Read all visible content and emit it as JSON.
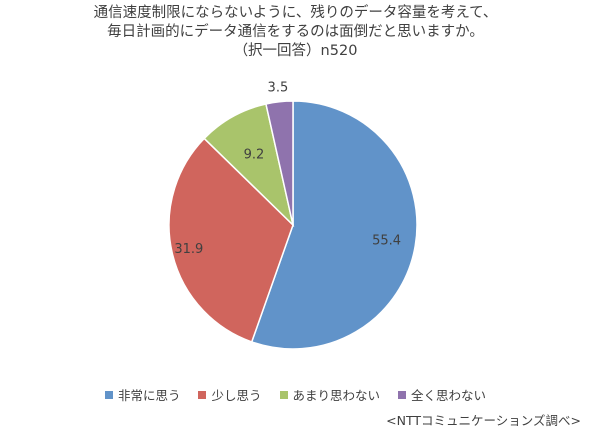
{
  "chart_data": {
    "type": "pie",
    "title_lines": [
      "通信速度制限にならないように、残りのデータ容量を考えて、",
      "毎日計画的にデータ通信をするのは面倒だと思いますか。",
      "（択一回答）n520"
    ],
    "categories": [
      "非常に思う",
      "少し思う",
      "あまり思わない",
      "全く思わない"
    ],
    "values": [
      55.4,
      31.9,
      9.2,
      3.5
    ],
    "labels": [
      "55.4",
      "31.9",
      "9.2",
      "3.5"
    ],
    "colors": [
      "#6193c9",
      "#d0655d",
      "#a9c46b",
      "#8f73ad"
    ],
    "legend_position": "bottom",
    "start_angle": "12 o'clock",
    "direction": "clockwise"
  },
  "source_note": "<NTTコミュニケーションズ調べ>"
}
